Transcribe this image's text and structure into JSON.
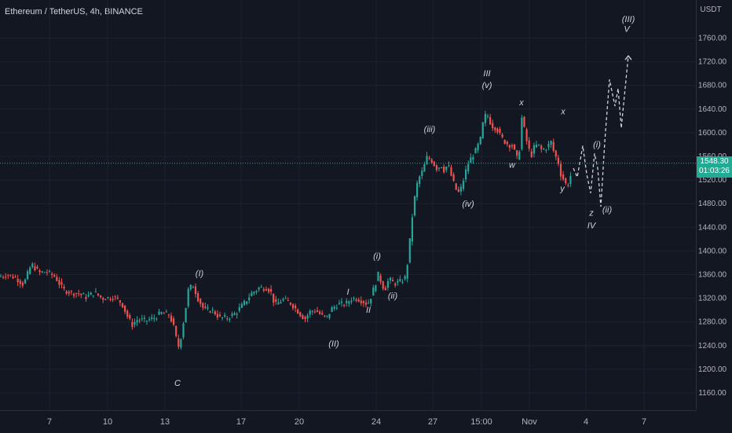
{
  "header": {
    "symbol": "Ethereum / TetherUS, 4h, BINANCE"
  },
  "price_axis": {
    "currency": "USDT"
  },
  "current_price": {
    "value": "1548.30",
    "countdown": "01:03:26"
  },
  "colors": {
    "up": "#26a69a",
    "down": "#ef5350",
    "background": "#131722",
    "label": "#d1d4dc",
    "projection": "#d1d4dc"
  },
  "chart_data": {
    "type": "candlestick",
    "title": "",
    "ylim": [
      1140,
      1780
    ],
    "y_ticks": [
      1160,
      1200,
      1240,
      1280,
      1320,
      1360,
      1400,
      1440,
      1480,
      1520,
      1560,
      1600,
      1640,
      1680,
      1720,
      1760
    ],
    "y_tick_labels": [
      "1160.00",
      "1200.00",
      "1240.00",
      "1280.00",
      "1320.00",
      "1360.00",
      "1400.00",
      "1440.00",
      "1480.00",
      "1520.00",
      "1560.00",
      "1600.00",
      "1640.00",
      "1680.00",
      "1720.00",
      "1760.00"
    ],
    "x_ticks": [
      "7",
      "10",
      "13",
      "17",
      "20",
      "24",
      "27",
      "15:00",
      "Nov",
      "4",
      "7"
    ],
    "price_path": [
      [
        0,
        1357
      ],
      [
        8,
        1360
      ],
      [
        20,
        1355
      ],
      [
        30,
        1343
      ],
      [
        40,
        1378
      ],
      [
        50,
        1363
      ],
      [
        58,
        1365
      ],
      [
        70,
        1357
      ],
      [
        80,
        1335
      ],
      [
        90,
        1330
      ],
      [
        100,
        1328
      ],
      [
        110,
        1322
      ],
      [
        120,
        1330
      ],
      [
        130,
        1320
      ],
      [
        145,
        1322
      ],
      [
        155,
        1312
      ],
      [
        162,
        1290
      ],
      [
        168,
        1275
      ],
      [
        175,
        1284
      ],
      [
        185,
        1282
      ],
      [
        195,
        1286
      ],
      [
        205,
        1295
      ],
      [
        215,
        1292
      ],
      [
        220,
        1278
      ],
      [
        225,
        1248
      ],
      [
        228,
        1236
      ],
      [
        232,
        1268
      ],
      [
        236,
        1300
      ],
      [
        240,
        1336
      ],
      [
        246,
        1342
      ],
      [
        252,
        1320
      ],
      [
        260,
        1300
      ],
      [
        270,
        1300
      ],
      [
        280,
        1287
      ],
      [
        290,
        1287
      ],
      [
        300,
        1295
      ],
      [
        310,
        1310
      ],
      [
        320,
        1328
      ],
      [
        330,
        1338
      ],
      [
        340,
        1338
      ],
      [
        345,
        1330
      ],
      [
        350,
        1308
      ],
      [
        360,
        1318
      ],
      [
        370,
        1312
      ],
      [
        380,
        1297
      ],
      [
        388,
        1285
      ],
      [
        395,
        1298
      ],
      [
        402,
        1300
      ],
      [
        410,
        1290
      ],
      [
        416,
        1287
      ],
      [
        422,
        1302
      ],
      [
        430,
        1310
      ],
      [
        440,
        1310
      ],
      [
        448,
        1320
      ],
      [
        455,
        1320
      ],
      [
        462,
        1315
      ],
      [
        468,
        1310
      ],
      [
        472,
        1322
      ],
      [
        478,
        1345
      ],
      [
        482,
        1362
      ],
      [
        486,
        1344
      ],
      [
        490,
        1335
      ],
      [
        495,
        1352
      ],
      [
        502,
        1345
      ],
      [
        510,
        1348
      ],
      [
        516,
        1355
      ],
      [
        520,
        1390
      ],
      [
        524,
        1450
      ],
      [
        528,
        1490
      ],
      [
        532,
        1520
      ],
      [
        538,
        1535
      ],
      [
        544,
        1560
      ],
      [
        550,
        1552
      ],
      [
        556,
        1540
      ],
      [
        562,
        1545
      ],
      [
        566,
        1535
      ],
      [
        570,
        1548
      ],
      [
        575,
        1525
      ],
      [
        580,
        1505
      ],
      [
        585,
        1497
      ],
      [
        590,
        1520
      ],
      [
        595,
        1545
      ],
      [
        600,
        1558
      ],
      [
        606,
        1570
      ],
      [
        612,
        1590
      ],
      [
        616,
        1625
      ],
      [
        620,
        1632
      ],
      [
        626,
        1612
      ],
      [
        632,
        1608
      ],
      [
        638,
        1592
      ],
      [
        645,
        1582
      ],
      [
        652,
        1578
      ],
      [
        656,
        1565
      ],
      [
        660,
        1550
      ],
      [
        665,
        1635
      ],
      [
        668,
        1600
      ],
      [
        672,
        1578
      ],
      [
        676,
        1560
      ],
      [
        680,
        1575
      ],
      [
        685,
        1580
      ],
      [
        690,
        1570
      ],
      [
        696,
        1575
      ],
      [
        702,
        1585
      ],
      [
        706,
        1562
      ],
      [
        710,
        1555
      ],
      [
        714,
        1530
      ],
      [
        718,
        1520
      ],
      [
        722,
        1508
      ],
      [
        726,
        1525
      ],
      [
        729,
        1540
      ]
    ],
    "projection_path": [
      [
        730,
        1540
      ],
      [
        735,
        1525
      ],
      [
        742,
        1578
      ],
      [
        747,
        1530
      ],
      [
        752,
        1498
      ],
      [
        757,
        1565
      ],
      [
        761,
        1540
      ],
      [
        765,
        1475
      ],
      [
        770,
        1585
      ],
      [
        776,
        1690
      ],
      [
        783,
        1645
      ],
      [
        787,
        1675
      ],
      [
        791,
        1608
      ],
      [
        800,
        1730
      ]
    ],
    "waves": [
      {
        "label": "C",
        "x": 226,
        "y": 1185,
        "pos": "below"
      },
      {
        "label": "(I)",
        "x": 254,
        "y": 1352,
        "pos": "above"
      },
      {
        "label": "(II)",
        "x": 425,
        "y": 1252,
        "pos": "below"
      },
      {
        "label": "I",
        "x": 443,
        "y": 1321,
        "pos": "above"
      },
      {
        "label": "II",
        "x": 469,
        "y": 1309,
        "pos": "below"
      },
      {
        "label": "(i)",
        "x": 480,
        "y": 1381,
        "pos": "above"
      },
      {
        "label": "(ii)",
        "x": 500,
        "y": 1333,
        "pos": "below"
      },
      {
        "label": "(iii)",
        "x": 547,
        "y": 1596,
        "pos": "above"
      },
      {
        "label": "(iv)",
        "x": 596,
        "y": 1488,
        "pos": "below"
      },
      {
        "label": "III",
        "x": 620,
        "y": 1690,
        "pos": "above"
      },
      {
        "label": "(v)",
        "x": 620,
        "y": 1670,
        "pos": "above"
      },
      {
        "label": "x",
        "x": 664,
        "y": 1641,
        "pos": "above"
      },
      {
        "label": "w",
        "x": 652,
        "y": 1554,
        "pos": "below"
      },
      {
        "label": "x",
        "x": 717,
        "y": 1626,
        "pos": "above"
      },
      {
        "label": "y",
        "x": 716,
        "y": 1514,
        "pos": "below"
      },
      {
        "label": "(i)",
        "x": 760,
        "y": 1570,
        "pos": "above"
      },
      {
        "label": "(ii)",
        "x": 773,
        "y": 1478,
        "pos": "below"
      },
      {
        "label": "z",
        "x": 753,
        "y": 1473,
        "pos": "below"
      },
      {
        "label": "IV",
        "x": 753,
        "y": 1452,
        "pos": "below"
      },
      {
        "label": "(III)",
        "x": 800,
        "y": 1782,
        "pos": "above"
      },
      {
        "label": "V",
        "x": 798,
        "y": 1765,
        "pos": "above"
      }
    ]
  }
}
